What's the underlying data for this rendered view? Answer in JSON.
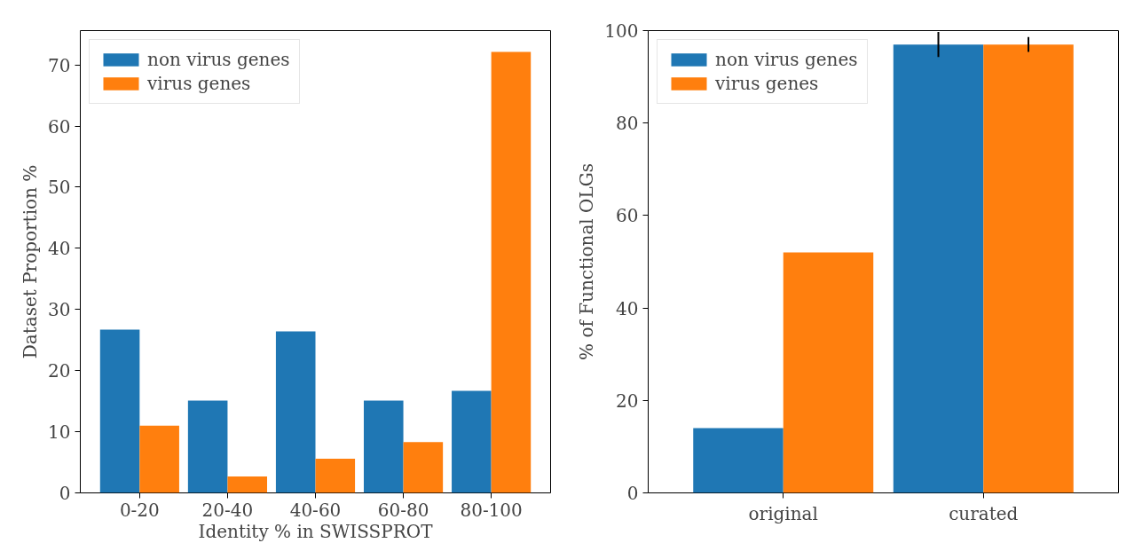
{
  "chart_data": [
    {
      "type": "bar",
      "xlabel": "Identity % in SWISSPROT",
      "ylabel": "Dataset Proportion %",
      "categories": [
        "0-20",
        "20-40",
        "40-60",
        "60-80",
        "80-100"
      ],
      "series": [
        {
          "name": "non virus genes",
          "color": "#1f77b4",
          "values": [
            26.7,
            15.1,
            26.4,
            15.1,
            16.7
          ]
        },
        {
          "name": "virus genes",
          "color": "#ff7f0e",
          "values": [
            11.0,
            2.7,
            5.6,
            8.3,
            72.1
          ]
        }
      ],
      "ylim": [
        0,
        75.6
      ],
      "yticks": [
        0,
        10,
        20,
        30,
        40,
        50,
        60,
        70
      ],
      "grid": false,
      "legend": "top left"
    },
    {
      "type": "bar",
      "ylabel": "% of Functional OLGs",
      "categories": [
        "original",
        "curated"
      ],
      "series": [
        {
          "name": "non virus genes",
          "color": "#1f77b4",
          "values": [
            14.0,
            97.0
          ],
          "errors": [
            null,
            2.7
          ]
        },
        {
          "name": "virus genes",
          "color": "#ff7f0e",
          "values": [
            52.0,
            97.0
          ],
          "errors": [
            null,
            1.6
          ]
        }
      ],
      "ylim": [
        0,
        100
      ],
      "yticks": [
        0,
        20,
        40,
        60,
        80,
        100
      ],
      "grid": false,
      "legend": "top left"
    }
  ]
}
